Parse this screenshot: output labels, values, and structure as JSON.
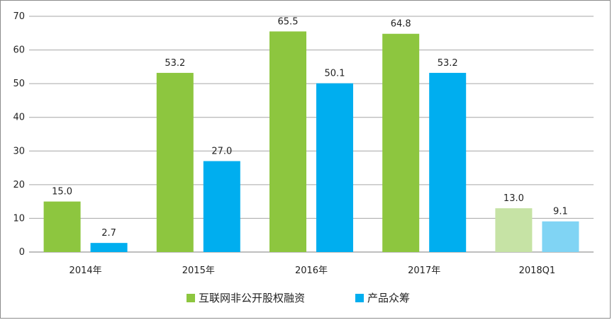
{
  "chart_data": {
    "type": "bar",
    "categories": [
      "2014年",
      "2015年",
      "2016年",
      "2017年",
      "2018Q1"
    ],
    "series": [
      {
        "name": "互联网非公开股权融资",
        "values": [
          15.0,
          53.2,
          65.5,
          64.8,
          13.0
        ],
        "color": "#8DC63F",
        "faded_color": "#C6E3A5"
      },
      {
        "name": "产品众筹",
        "values": [
          2.7,
          27.0,
          50.1,
          53.2,
          9.1
        ],
        "color": "#00AEEF",
        "faded_color": "#80D4F4"
      }
    ],
    "data_labels": [
      [
        "15.0",
        "53.2",
        "65.5",
        "64.8",
        "13.0"
      ],
      [
        "2.7",
        "27.0",
        "50.1",
        "53.2",
        "9.1"
      ]
    ],
    "faded_categories": [
      "2018Q1"
    ],
    "yticks": [
      "0",
      "10",
      "20",
      "30",
      "40",
      "50",
      "60",
      "70"
    ],
    "ylim": [
      0,
      70
    ],
    "grid": true,
    "legend_position": "bottom-center",
    "gridline_color": "#A6A6A6"
  }
}
